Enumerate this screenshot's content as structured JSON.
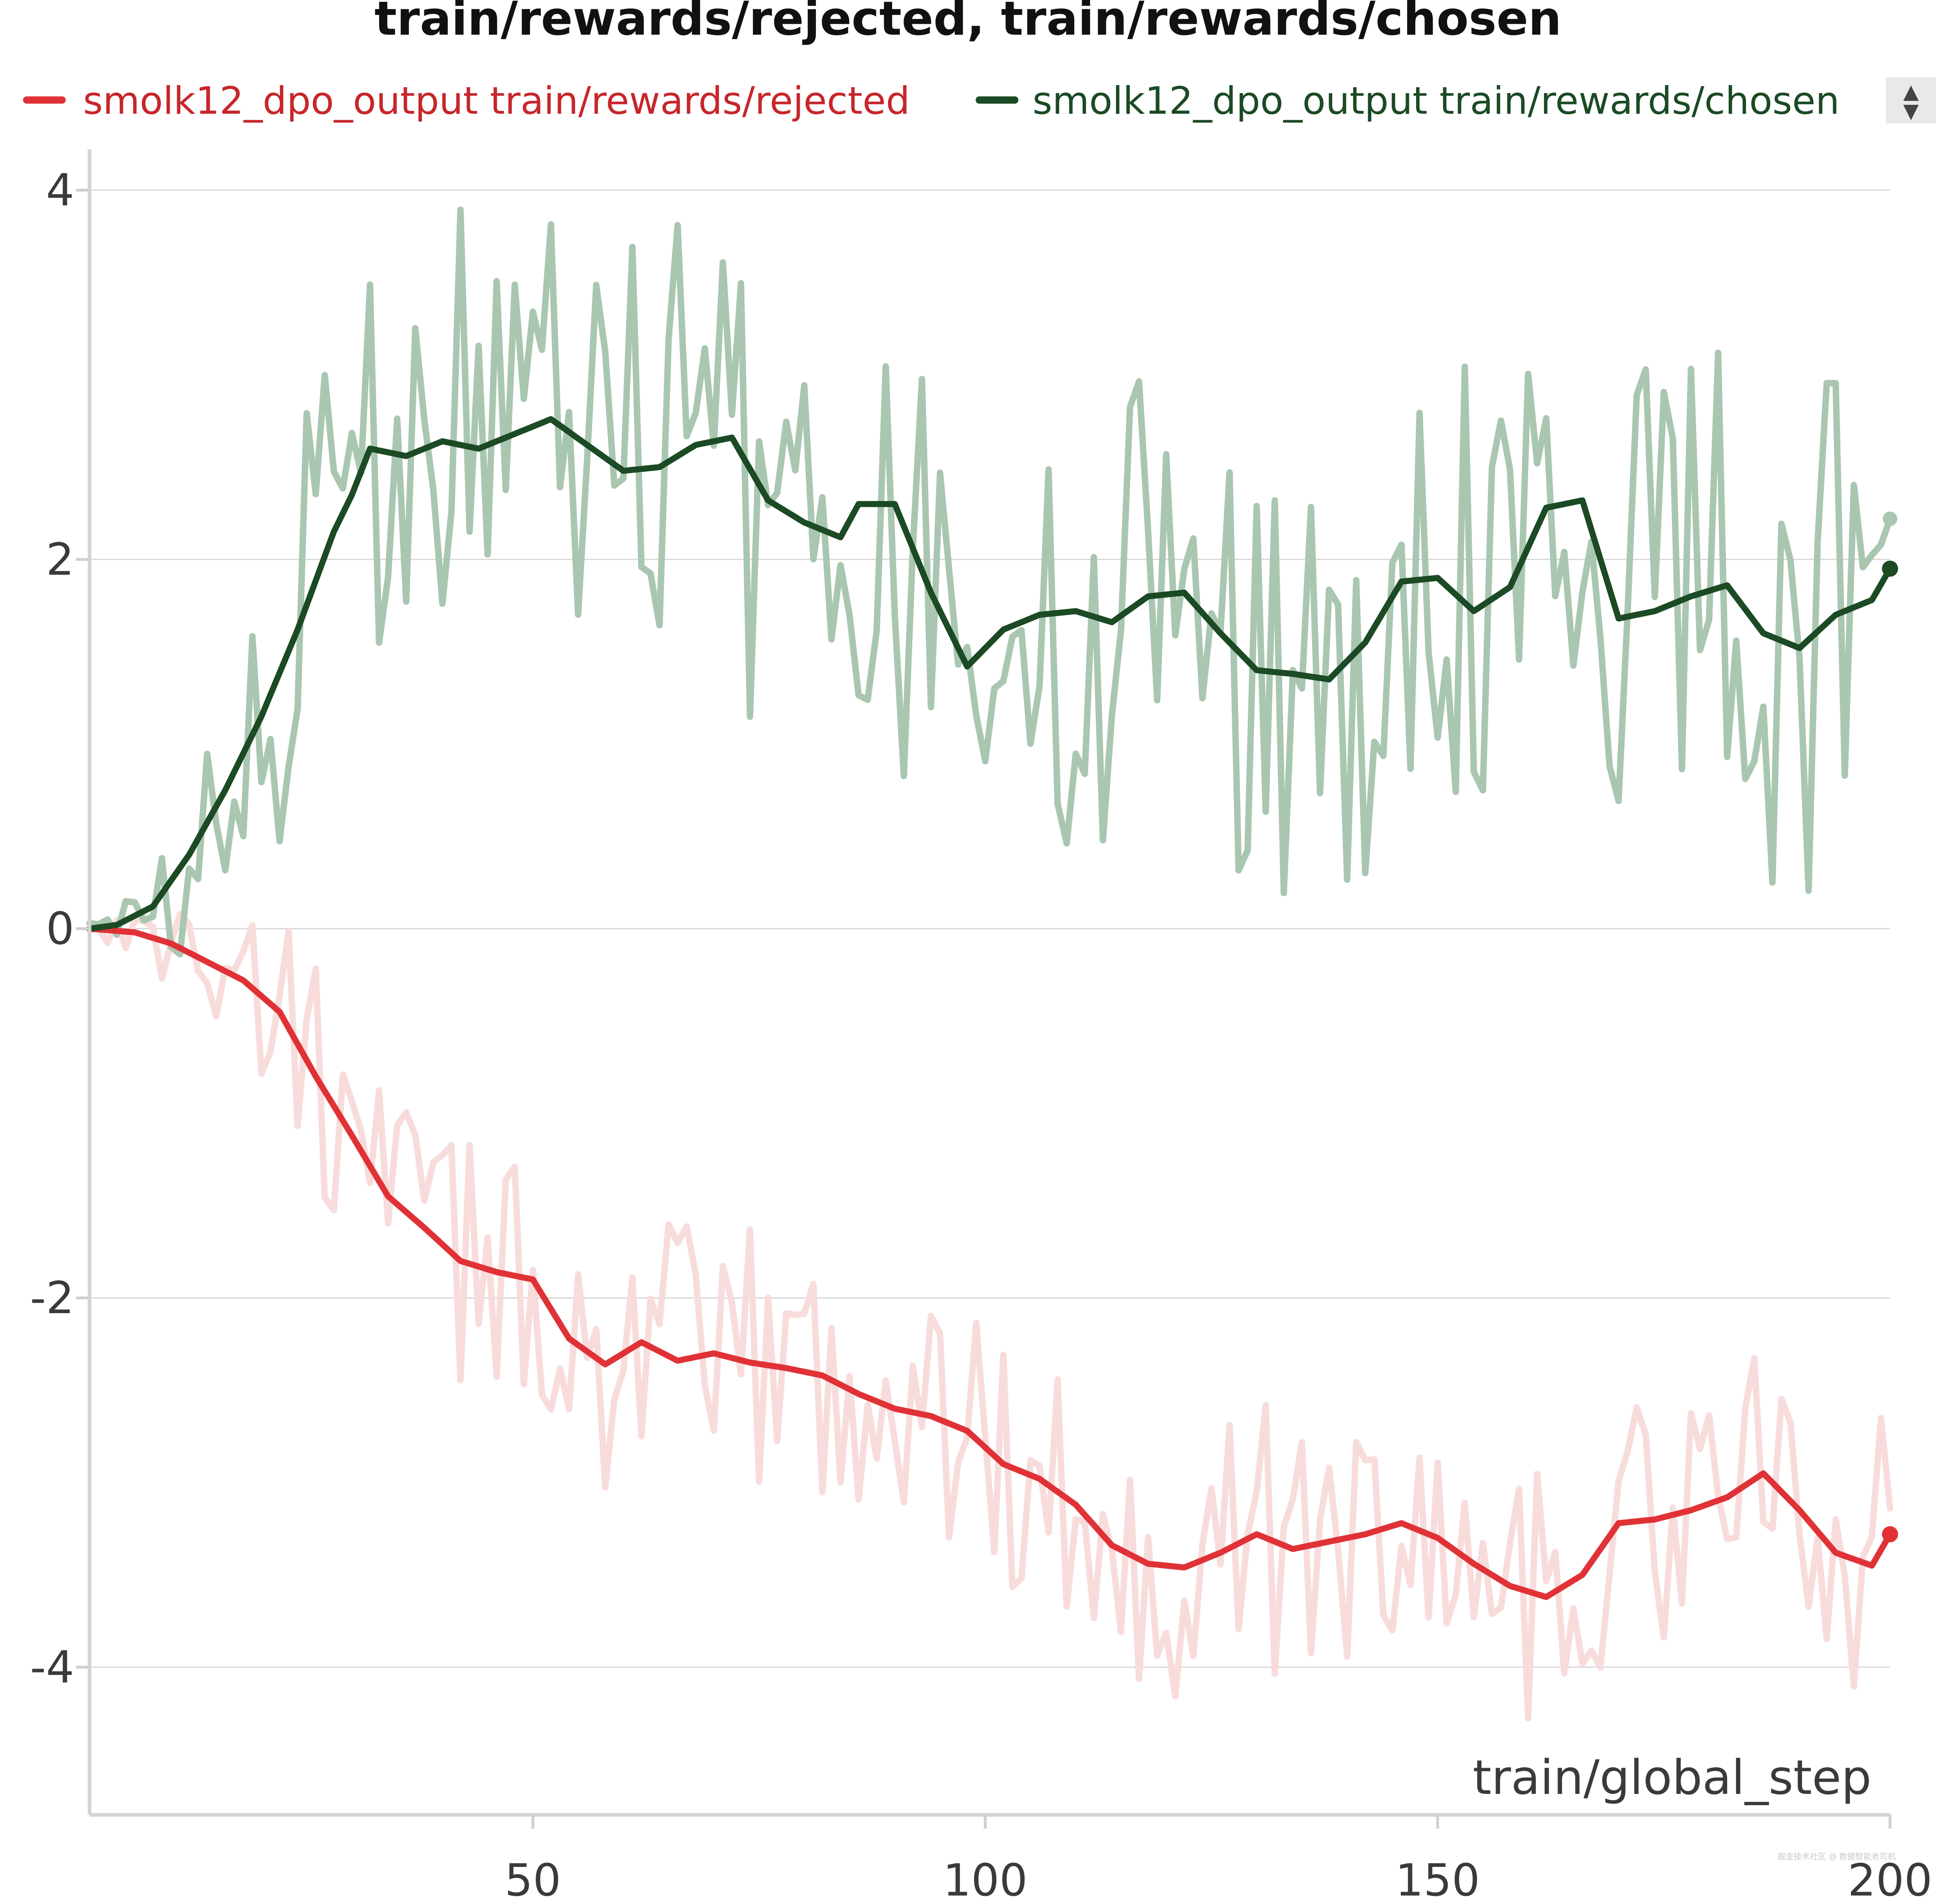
{
  "chart_data": {
    "type": "line",
    "title": "train/rewards/rejected, train/rewards/chosen",
    "xlabel": "train/global_step",
    "ylabel": "",
    "xlim": [
      1,
      200
    ],
    "ylim": [
      -4.8,
      4.2
    ],
    "x_ticks": [
      50,
      100,
      150,
      200
    ],
    "y_ticks": [
      -4,
      -2,
      0,
      2,
      4
    ],
    "grid": true,
    "legend_position": "top",
    "legend_scroll": {
      "up": "▲",
      "down": "▼"
    },
    "smoothing": 0.8,
    "series": [
      {
        "name": "smolk12_dpo_output train/rewards/rejected",
        "color": "#e03236",
        "raw_color": "#f8dcdc",
        "anchors": [
          [
            1,
            0
          ],
          [
            6,
            -0.02
          ],
          [
            10,
            -0.08
          ],
          [
            14,
            -0.18
          ],
          [
            18,
            -0.28
          ],
          [
            22,
            -0.45
          ],
          [
            26,
            -0.8
          ],
          [
            30,
            -1.12
          ],
          [
            34,
            -1.45
          ],
          [
            38,
            -1.62
          ],
          [
            42,
            -1.8
          ],
          [
            46,
            -1.86
          ],
          [
            50,
            -1.9
          ],
          [
            54,
            -2.22
          ],
          [
            58,
            -2.36
          ],
          [
            62,
            -2.24
          ],
          [
            66,
            -2.34
          ],
          [
            70,
            -2.3
          ],
          [
            74,
            -2.35
          ],
          [
            78,
            -2.38
          ],
          [
            82,
            -2.42
          ],
          [
            86,
            -2.52
          ],
          [
            90,
            -2.6
          ],
          [
            94,
            -2.64
          ],
          [
            98,
            -2.72
          ],
          [
            102,
            -2.9
          ],
          [
            106,
            -2.98
          ],
          [
            110,
            -3.12
          ],
          [
            114,
            -3.34
          ],
          [
            118,
            -3.44
          ],
          [
            122,
            -3.46
          ],
          [
            126,
            -3.38
          ],
          [
            130,
            -3.28
          ],
          [
            134,
            -3.36
          ],
          [
            138,
            -3.32
          ],
          [
            142,
            -3.28
          ],
          [
            146,
            -3.22
          ],
          [
            150,
            -3.3
          ],
          [
            154,
            -3.44
          ],
          [
            158,
            -3.56
          ],
          [
            162,
            -3.62
          ],
          [
            166,
            -3.5
          ],
          [
            170,
            -3.22
          ],
          [
            174,
            -3.2
          ],
          [
            178,
            -3.15
          ],
          [
            182,
            -3.08
          ],
          [
            186,
            -2.95
          ],
          [
            190,
            -3.15
          ],
          [
            194,
            -3.38
          ],
          [
            198,
            -3.45
          ],
          [
            200,
            -3.28
          ]
        ]
      },
      {
        "name": "smolk12_dpo_output train/rewards/chosen",
        "color": "#1b4a24",
        "raw_color": "#a9c6b1",
        "anchors": [
          [
            1,
            0
          ],
          [
            4,
            0.02
          ],
          [
            8,
            0.12
          ],
          [
            12,
            0.4
          ],
          [
            16,
            0.75
          ],
          [
            20,
            1.15
          ],
          [
            24,
            1.62
          ],
          [
            28,
            2.15
          ],
          [
            30,
            2.35
          ],
          [
            32,
            2.6
          ],
          [
            36,
            2.56
          ],
          [
            40,
            2.64
          ],
          [
            44,
            2.6
          ],
          [
            48,
            2.68
          ],
          [
            52,
            2.76
          ],
          [
            56,
            2.62
          ],
          [
            60,
            2.48
          ],
          [
            64,
            2.5
          ],
          [
            68,
            2.62
          ],
          [
            72,
            2.66
          ],
          [
            76,
            2.32
          ],
          [
            80,
            2.2
          ],
          [
            84,
            2.12
          ],
          [
            86,
            2.3
          ],
          [
            90,
            2.3
          ],
          [
            94,
            1.82
          ],
          [
            98,
            1.42
          ],
          [
            102,
            1.62
          ],
          [
            106,
            1.7
          ],
          [
            110,
            1.72
          ],
          [
            114,
            1.66
          ],
          [
            118,
            1.8
          ],
          [
            122,
            1.82
          ],
          [
            126,
            1.6
          ],
          [
            130,
            1.4
          ],
          [
            134,
            1.38
          ],
          [
            138,
            1.35
          ],
          [
            142,
            1.55
          ],
          [
            146,
            1.88
          ],
          [
            150,
            1.9
          ],
          [
            154,
            1.72
          ],
          [
            158,
            1.85
          ],
          [
            162,
            2.28
          ],
          [
            166,
            2.32
          ],
          [
            170,
            1.68
          ],
          [
            174,
            1.72
          ],
          [
            178,
            1.8
          ],
          [
            182,
            1.86
          ],
          [
            186,
            1.6
          ],
          [
            190,
            1.52
          ],
          [
            194,
            1.7
          ],
          [
            198,
            1.78
          ],
          [
            200,
            1.95
          ]
        ],
        "raw_last": 2.22
      }
    ]
  },
  "watermark": "掘金技术社区 @ 数据智能老司机"
}
